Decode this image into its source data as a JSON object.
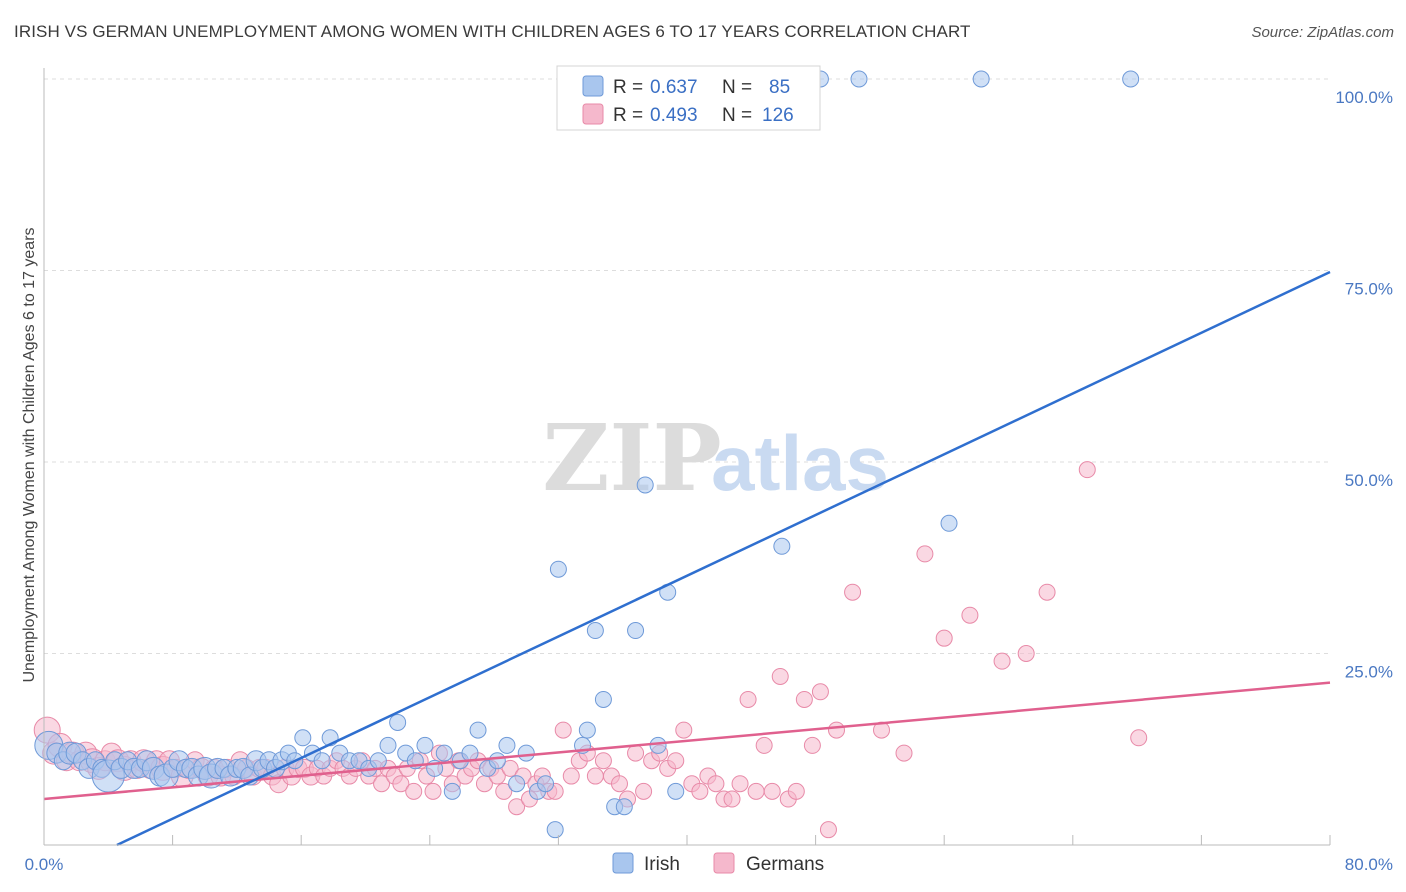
{
  "title": "IRISH VS GERMAN UNEMPLOYMENT AMONG WOMEN WITH CHILDREN AGES 6 TO 17 YEARS CORRELATION CHART",
  "source": "Source: ZipAtlas.com",
  "watermark": {
    "zip": "ZIP",
    "atlas": "atlas"
  },
  "colors": {
    "irish_fill": "#a9c6ee",
    "irish_stroke": "#6f9ad8",
    "irish_line": "#2f6fcf",
    "german_fill": "#f5b8cc",
    "german_stroke": "#e88aa8",
    "german_line": "#e0608e",
    "grid": "#dddddd",
    "tick_text": "#4a78c2"
  },
  "legend": {
    "r_label": "R =",
    "n_label": "N =",
    "irish": {
      "r": "0.637",
      "n": "85"
    },
    "german": {
      "r": "0.493",
      "n": "126"
    }
  },
  "chart_data": {
    "type": "scatter",
    "title": "IRISH VS GERMAN UNEMPLOYMENT AMONG WOMEN WITH CHILDREN AGES 6 TO 17 YEARS CORRELATION CHART",
    "xlabel": "",
    "ylabel": "Unemployment Among Women with Children Ages 6 to 17 years",
    "xlim": [
      0,
      80
    ],
    "ylim": [
      0,
      100
    ],
    "x_tick_labels": [
      "0.0%",
      "80.0%"
    ],
    "y_tick_labels": [
      "100.0%",
      "75.0%",
      "50.0%",
      "25.0%"
    ],
    "y_ticks": [
      100,
      75,
      50,
      25
    ],
    "grid": true,
    "legend_position": "top-center",
    "series": [
      {
        "name": "Irish",
        "r": 0.637,
        "n": 85,
        "trend": {
          "x": [
            0,
            80
          ],
          "y": [
            -4.5,
            74.8
          ]
        },
        "points": [
          [
            0.3,
            13,
            14
          ],
          [
            0.8,
            12,
            10
          ],
          [
            1.2,
            11,
            9
          ],
          [
            1.6,
            12,
            11
          ],
          [
            2,
            12,
            10
          ],
          [
            2.4,
            11,
            9
          ],
          [
            2.8,
            10,
            10
          ],
          [
            3.2,
            11,
            9
          ],
          [
            3.6,
            10,
            9
          ],
          [
            4,
            9,
            16
          ],
          [
            4.4,
            11,
            9
          ],
          [
            4.8,
            10,
            10
          ],
          [
            5.2,
            11,
            9
          ],
          [
            5.6,
            10,
            10
          ],
          [
            6,
            10,
            9
          ],
          [
            6.4,
            11,
            10
          ],
          [
            6.8,
            10,
            11
          ],
          [
            7.2,
            9,
            10
          ],
          [
            7.6,
            9,
            12
          ],
          [
            8,
            10,
            9
          ],
          [
            8.4,
            11,
            10
          ],
          [
            8.8,
            10,
            9
          ],
          [
            9.2,
            10,
            10
          ],
          [
            9.6,
            9,
            10
          ],
          [
            10,
            10,
            11
          ],
          [
            10.4,
            9,
            12
          ],
          [
            10.8,
            10,
            10
          ],
          [
            11.2,
            10,
            9
          ],
          [
            11.6,
            9,
            10
          ],
          [
            12,
            10,
            9
          ],
          [
            12.4,
            10,
            10
          ],
          [
            12.8,
            9,
            9
          ],
          [
            13.2,
            11,
            10
          ],
          [
            13.6,
            10,
            9
          ],
          [
            14,
            11,
            9
          ],
          [
            14.4,
            10,
            9
          ],
          [
            14.8,
            11,
            9
          ],
          [
            15.2,
            12,
            8
          ],
          [
            15.6,
            11,
            8
          ],
          [
            16.1,
            14,
            8
          ],
          [
            16.7,
            12,
            8
          ],
          [
            17.3,
            11,
            8
          ],
          [
            17.8,
            14,
            8
          ],
          [
            18.4,
            12,
            8
          ],
          [
            19,
            11,
            8
          ],
          [
            19.6,
            11,
            8
          ],
          [
            20.2,
            10,
            8
          ],
          [
            20.8,
            11,
            8
          ],
          [
            21.4,
            13,
            8
          ],
          [
            22,
            16,
            8
          ],
          [
            22.5,
            12,
            8
          ],
          [
            23.1,
            11,
            8
          ],
          [
            23.7,
            13,
            8
          ],
          [
            24.3,
            10,
            8
          ],
          [
            24.9,
            12,
            8
          ],
          [
            25.4,
            7,
            8
          ],
          [
            25.9,
            11,
            8
          ],
          [
            26.5,
            12,
            8
          ],
          [
            27,
            15,
            8
          ],
          [
            27.6,
            10,
            8
          ],
          [
            28.2,
            11,
            8
          ],
          [
            28.8,
            13,
            8
          ],
          [
            29.4,
            8,
            8
          ],
          [
            30,
            12,
            8
          ],
          [
            30.7,
            7,
            8
          ],
          [
            31.2,
            8,
            8
          ],
          [
            31.8,
            2,
            8
          ],
          [
            32,
            36,
            8
          ],
          [
            33.5,
            13,
            8
          ],
          [
            33.8,
            15,
            8
          ],
          [
            34.3,
            28,
            8
          ],
          [
            34.8,
            19,
            8
          ],
          [
            35.5,
            5,
            8
          ],
          [
            36.1,
            5,
            8
          ],
          [
            36.8,
            28,
            8
          ],
          [
            37.4,
            47,
            8
          ],
          [
            38.2,
            13,
            8
          ],
          [
            38.8,
            33,
            8
          ],
          [
            39.3,
            7,
            8
          ],
          [
            45.9,
            39,
            8
          ],
          [
            48.3,
            100,
            8
          ],
          [
            50.7,
            100,
            8
          ],
          [
            56.3,
            42,
            8
          ],
          [
            67.6,
            100,
            8
          ],
          [
            58.3,
            100,
            8
          ]
        ]
      },
      {
        "name": "Germans",
        "r": 0.493,
        "n": 126,
        "trend": {
          "x": [
            0,
            80
          ],
          "y": [
            6.0,
            21.2
          ]
        },
        "points": [
          [
            0.2,
            15,
            13
          ],
          [
            0.6,
            12,
            11
          ],
          [
            1,
            13,
            12
          ],
          [
            1.4,
            11,
            10
          ],
          [
            1.8,
            12,
            11
          ],
          [
            2.2,
            11,
            10
          ],
          [
            2.6,
            12,
            11
          ],
          [
            3,
            11,
            12
          ],
          [
            3.4,
            10,
            11
          ],
          [
            3.8,
            11,
            10
          ],
          [
            4.2,
            12,
            10
          ],
          [
            4.6,
            11,
            11
          ],
          [
            5,
            10,
            12
          ],
          [
            5.4,
            11,
            10
          ],
          [
            5.8,
            10,
            10
          ],
          [
            6.2,
            11,
            11
          ],
          [
            6.6,
            10,
            10
          ],
          [
            7,
            11,
            10
          ],
          [
            7.4,
            10,
            12
          ],
          [
            7.8,
            11,
            10
          ],
          [
            8.2,
            10,
            9
          ],
          [
            8.6,
            9,
            11
          ],
          [
            9,
            10,
            10
          ],
          [
            9.4,
            11,
            9
          ],
          [
            9.8,
            10,
            10
          ],
          [
            10.2,
            9,
            10
          ],
          [
            10.6,
            10,
            9
          ],
          [
            11,
            9,
            10
          ],
          [
            11.4,
            10,
            9
          ],
          [
            11.8,
            9,
            9
          ],
          [
            12.2,
            11,
            9
          ],
          [
            12.6,
            10,
            9
          ],
          [
            13,
            9,
            9
          ],
          [
            13.4,
            10,
            9
          ],
          [
            13.8,
            10,
            9
          ],
          [
            14.2,
            9,
            9
          ],
          [
            14.6,
            8,
            9
          ],
          [
            15,
            10,
            9
          ],
          [
            15.4,
            9,
            9
          ],
          [
            15.8,
            10,
            9
          ],
          [
            16.2,
            10,
            9
          ],
          [
            16.6,
            9,
            9
          ],
          [
            17,
            10,
            8
          ],
          [
            17.4,
            9,
            8
          ],
          [
            17.8,
            10,
            8
          ],
          [
            18.2,
            11,
            8
          ],
          [
            18.6,
            10,
            8
          ],
          [
            19,
            9,
            8
          ],
          [
            19.4,
            10,
            8
          ],
          [
            19.8,
            11,
            8
          ],
          [
            20.2,
            9,
            8
          ],
          [
            20.6,
            10,
            8
          ],
          [
            21,
            8,
            8
          ],
          [
            21.4,
            10,
            8
          ],
          [
            21.8,
            9,
            8
          ],
          [
            22.2,
            8,
            8
          ],
          [
            22.6,
            10,
            8
          ],
          [
            23,
            7,
            8
          ],
          [
            23.4,
            11,
            8
          ],
          [
            23.8,
            9,
            8
          ],
          [
            24.2,
            7,
            8
          ],
          [
            24.6,
            12,
            8
          ],
          [
            25,
            10,
            8
          ],
          [
            25.4,
            8,
            8
          ],
          [
            25.8,
            11,
            8
          ],
          [
            26.2,
            9,
            8
          ],
          [
            26.6,
            10,
            8
          ],
          [
            27,
            11,
            8
          ],
          [
            27.4,
            8,
            8
          ],
          [
            27.8,
            10,
            8
          ],
          [
            28.2,
            9,
            8
          ],
          [
            28.6,
            7,
            8
          ],
          [
            29,
            10,
            8
          ],
          [
            29.4,
            5,
            8
          ],
          [
            29.8,
            9,
            8
          ],
          [
            30.2,
            6,
            8
          ],
          [
            30.6,
            8,
            8
          ],
          [
            31,
            9,
            8
          ],
          [
            31.4,
            7,
            8
          ],
          [
            31.8,
            7,
            8
          ],
          [
            32.3,
            15,
            8
          ],
          [
            32.8,
            9,
            8
          ],
          [
            33.3,
            11,
            8
          ],
          [
            33.8,
            12,
            8
          ],
          [
            34.3,
            9,
            8
          ],
          [
            34.8,
            11,
            8
          ],
          [
            35.3,
            9,
            8
          ],
          [
            35.8,
            8,
            8
          ],
          [
            36.3,
            6,
            8
          ],
          [
            36.8,
            12,
            8
          ],
          [
            37.3,
            7,
            8
          ],
          [
            37.8,
            11,
            8
          ],
          [
            38.3,
            12,
            8
          ],
          [
            38.8,
            10,
            8
          ],
          [
            39.3,
            11,
            8
          ],
          [
            39.8,
            15,
            8
          ],
          [
            40.3,
            8,
            8
          ],
          [
            40.8,
            7,
            8
          ],
          [
            41.3,
            9,
            8
          ],
          [
            41.8,
            8,
            8
          ],
          [
            42.3,
            6,
            8
          ],
          [
            42.8,
            6,
            8
          ],
          [
            43.3,
            8,
            8
          ],
          [
            43.8,
            19,
            8
          ],
          [
            44.3,
            7,
            8
          ],
          [
            44.8,
            13,
            8
          ],
          [
            45.3,
            7,
            8
          ],
          [
            45.8,
            22,
            8
          ],
          [
            46.3,
            6,
            8
          ],
          [
            46.8,
            7,
            8
          ],
          [
            47.3,
            19,
            8
          ],
          [
            47.8,
            13,
            8
          ],
          [
            48.3,
            20,
            8
          ],
          [
            48.8,
            2,
            8
          ],
          [
            49.3,
            15,
            8
          ],
          [
            50.3,
            33,
            8
          ],
          [
            52.1,
            15,
            8
          ],
          [
            53.5,
            12,
            8
          ],
          [
            54.8,
            38,
            8
          ],
          [
            56,
            27,
            8
          ],
          [
            57.6,
            30,
            8
          ],
          [
            59.6,
            24,
            8
          ],
          [
            61.1,
            25,
            8
          ],
          [
            62.4,
            33,
            8
          ],
          [
            64.9,
            49,
            8
          ],
          [
            68.1,
            14,
            8
          ]
        ]
      }
    ]
  }
}
